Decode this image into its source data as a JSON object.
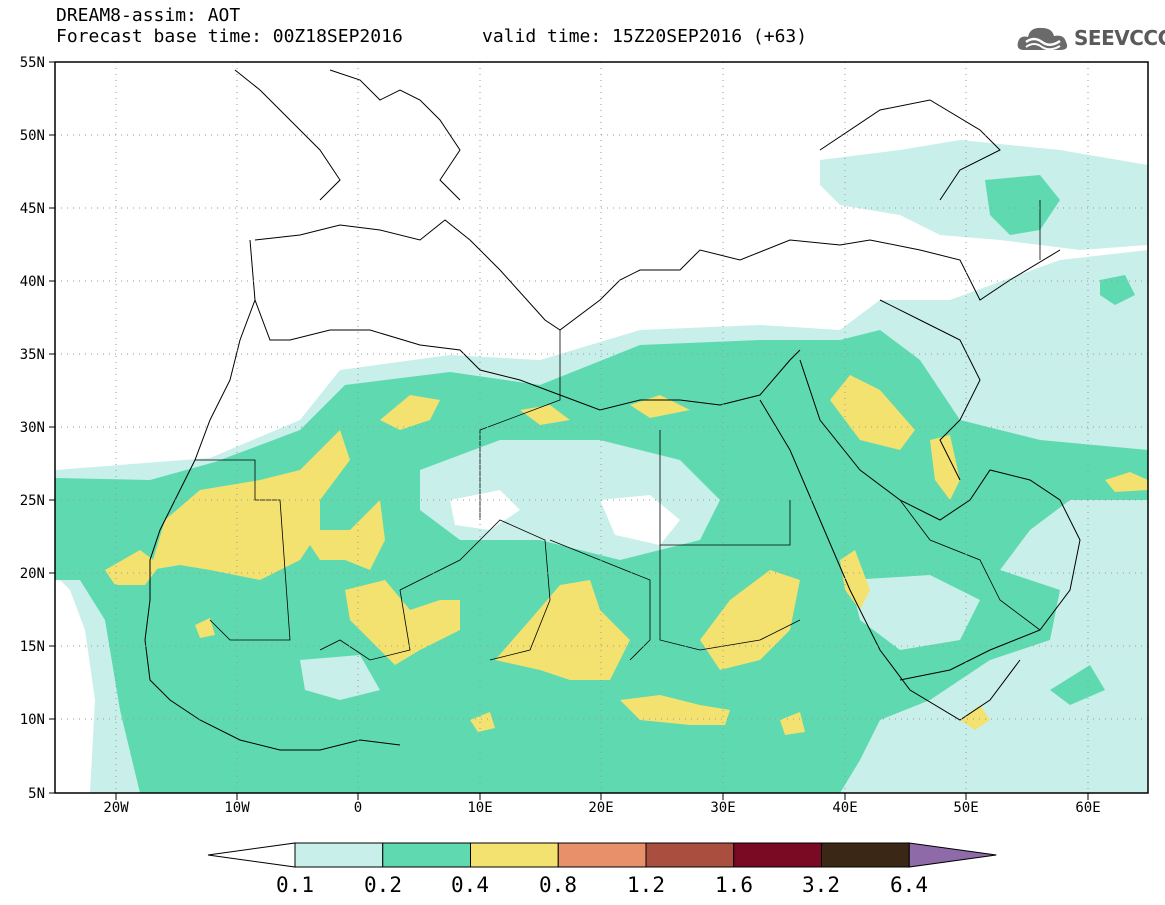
{
  "header": {
    "title": "DREAM8-assim: AOT",
    "base_time": "Forecast base time: 00Z18SEP2016",
    "valid_time": "valid time: 15Z20SEP2016 (+63)"
  },
  "logo": {
    "text": "SEEVCCC",
    "icon": "cloud-icon"
  },
  "map": {
    "lat_labels": [
      "55N",
      "50N",
      "45N",
      "40N",
      "35N",
      "30N",
      "25N",
      "20N",
      "15N",
      "10N",
      "5N"
    ],
    "lon_labels": [
      "20W",
      "10W",
      "0",
      "10E",
      "20E",
      "30E",
      "40E",
      "50E",
      "60E"
    ],
    "grid": true,
    "region": "North Africa, Mediterranean, Middle East"
  },
  "colorbar": {
    "labels": [
      "0.1",
      "0.2",
      "0.4",
      "0.8",
      "1.2",
      "1.6",
      "3.2",
      "6.4"
    ],
    "colors": [
      "#ffffff",
      "#c8efe9",
      "#5ed9b0",
      "#f3e170",
      "#e8906a",
      "#aa4f40",
      "#7a0a24",
      "#3b2716",
      "#8e6aa8"
    ],
    "extend": "both"
  }
}
